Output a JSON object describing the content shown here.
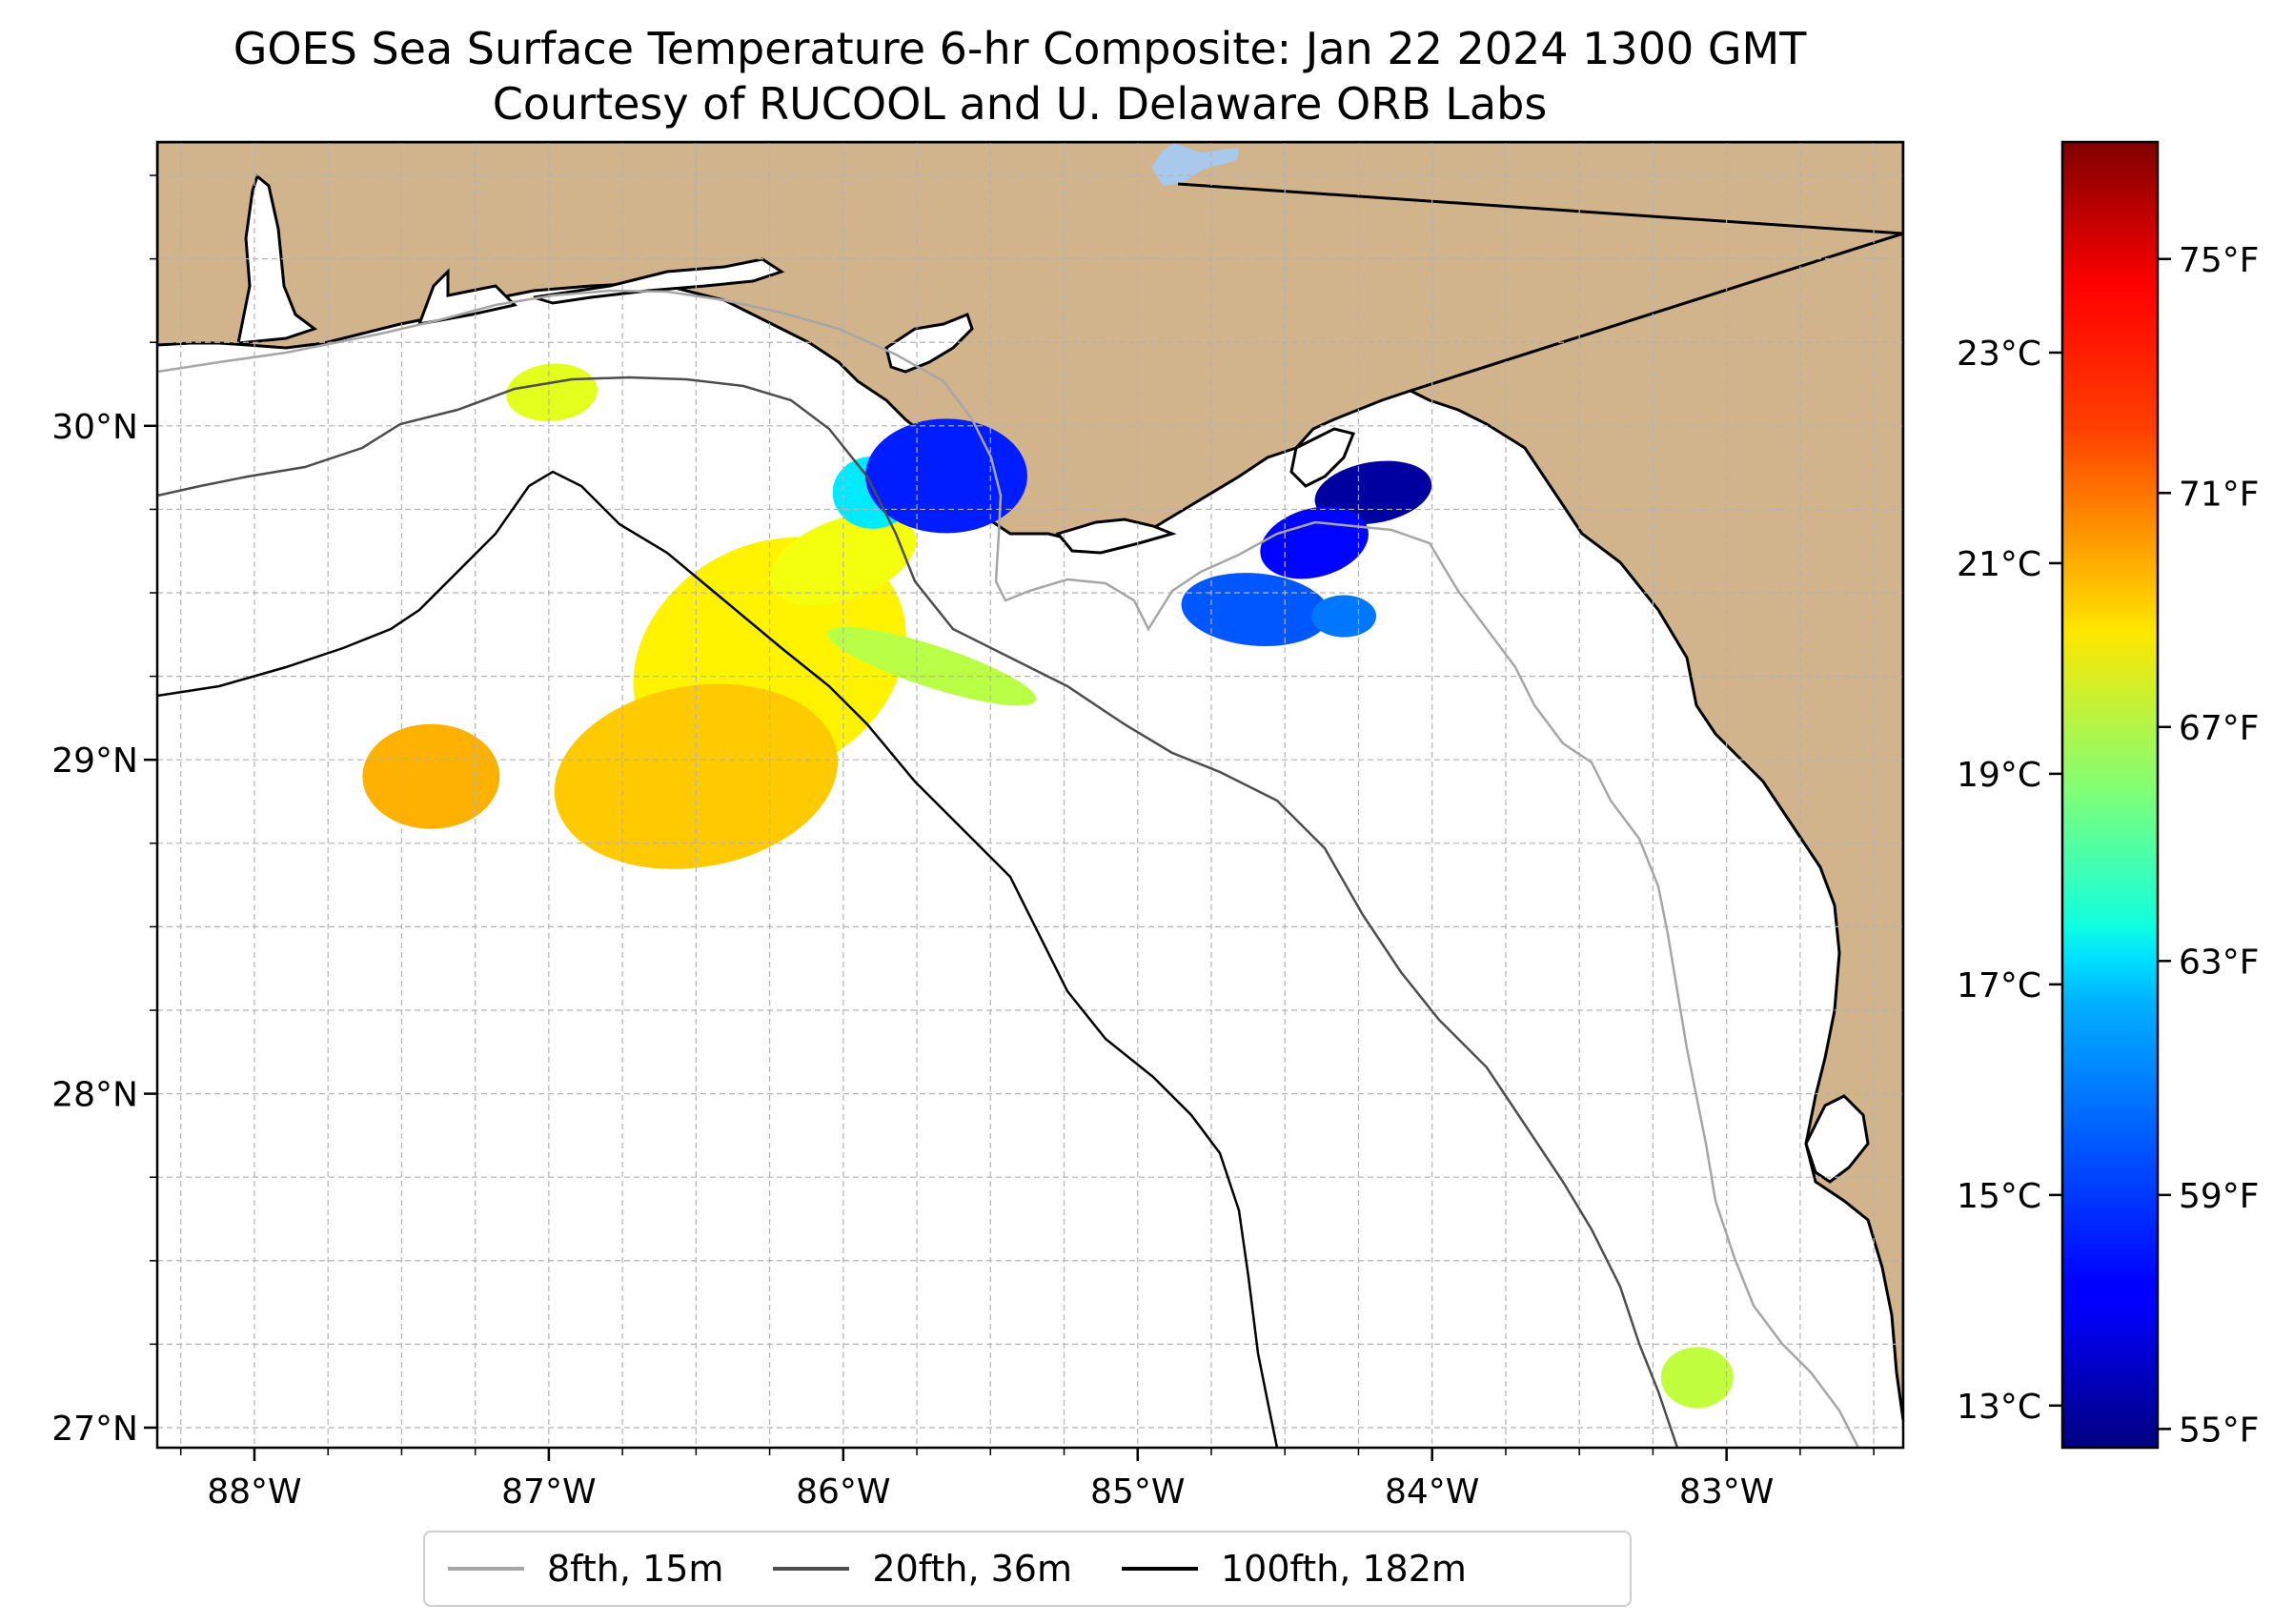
{
  "title": "GOES Sea Surface Temperature 6-hr Composite: Jan 22 2024 1300 GMT",
  "subtitle": "Courtesy of RUCOOL and U. Delaware ORB Labs",
  "colors": {
    "land": "#d2b48c",
    "ocean": "#ffffff",
    "isobath_8fth": "#a6a6a6",
    "isobath_20fth": "#4d4d4d",
    "isobath_100fth": "#000000",
    "lake": "#a8c8ec",
    "grid": "#b3b3b3"
  },
  "map": {
    "lon_ticks": [
      "88°W",
      "87°W",
      "86°W",
      "85°W",
      "84°W",
      "83°W"
    ],
    "lat_ticks": [
      "30°N",
      "29°N",
      "28°N",
      "27°N"
    ],
    "extent": {
      "lon_min": -88.33,
      "lon_max": -82.4,
      "lat_min": 26.94,
      "lat_max": 30.85
    }
  },
  "legend": {
    "items": [
      {
        "label": "8fth, 15m",
        "color": "#a6a6a6"
      },
      {
        "label": "20fth, 36m",
        "color": "#4d4d4d"
      },
      {
        "label": "100fth, 182m",
        "color": "#000000"
      }
    ]
  },
  "colorbar": {
    "colormap": "jet",
    "celsius_range": [
      12.6,
      25.0
    ],
    "celsius_ticks": [
      "13°C",
      "15°C",
      "17°C",
      "19°C",
      "21°C",
      "23°C"
    ],
    "fahrenheit_ticks": [
      "55°F",
      "59°F",
      "63°F",
      "67°F",
      "71°F",
      "75°F"
    ]
  },
  "sst_patches": [
    {
      "lon": -86.99,
      "lat": 30.1,
      "temp_c": 20.0
    },
    {
      "lon": -86.25,
      "lat": 29.3,
      "temp_c": 20.5
    },
    {
      "lon": -86.0,
      "lat": 29.6,
      "temp_c": 20.2
    },
    {
      "lon": -86.5,
      "lat": 28.95,
      "temp_c": 21.0
    },
    {
      "lon": -87.4,
      "lat": 28.95,
      "temp_c": 21.3
    },
    {
      "lon": -85.7,
      "lat": 29.28,
      "temp_c": 19.5
    },
    {
      "lon": -85.9,
      "lat": 29.8,
      "temp_c": 17.0
    },
    {
      "lon": -85.65,
      "lat": 29.85,
      "temp_c": 14.5
    },
    {
      "lon": -84.2,
      "lat": 29.8,
      "temp_c": 13.0
    },
    {
      "lon": -84.4,
      "lat": 29.65,
      "temp_c": 14.2
    },
    {
      "lon": -84.6,
      "lat": 29.45,
      "temp_c": 15.2
    },
    {
      "lon": -84.3,
      "lat": 29.43,
      "temp_c": 15.6
    },
    {
      "lon": -83.1,
      "lat": 27.15,
      "temp_c": 19.6
    }
  ]
}
